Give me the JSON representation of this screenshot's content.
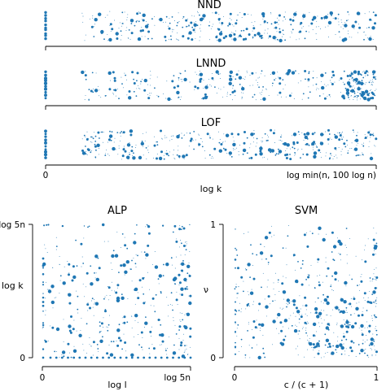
{
  "chart_data": [
    {
      "type": "scatter",
      "title": "NND",
      "xlabel": "",
      "ylabel": "",
      "xticks": [],
      "yticks": [],
      "color": "#1f77b4",
      "x_range": [
        0,
        1
      ],
      "gap_after_zero": [
        0.0,
        0.11
      ],
      "point_count": 380,
      "seed": 11,
      "edge_emphasis": "none"
    },
    {
      "type": "scatter",
      "title": "LNND",
      "xlabel": "",
      "ylabel": "",
      "xticks": [],
      "yticks": [],
      "color": "#1f77b4",
      "x_range": [
        0,
        1
      ],
      "gap_after_zero": [
        0.0,
        0.11
      ],
      "point_count": 420,
      "seed": 23,
      "edge_emphasis": "right"
    },
    {
      "type": "scatter",
      "title": "LOF",
      "xlabel": "log k",
      "ylabel": "",
      "xticks": [
        "0",
        "log min(n, 100 log n)"
      ],
      "yticks": [],
      "color": "#1f77b4",
      "x_range": [
        0,
        1
      ],
      "gap_after_zero": [
        0.0,
        0.11
      ],
      "point_count": 430,
      "seed": 37,
      "edge_emphasis": "none"
    },
    {
      "type": "scatter",
      "title": "ALP",
      "xlabel": "log l",
      "ylabel": "log k",
      "xticks": [
        "0",
        "log 5n"
      ],
      "yticks": [
        "0",
        "log 5n"
      ],
      "color": "#1f77b4",
      "x_range": [
        0,
        1
      ],
      "y_range": [
        0,
        1
      ],
      "point_count": 340,
      "seed": 51,
      "dense_region": "right-edge"
    },
    {
      "type": "scatter",
      "title": "SVM",
      "xlabel": "c / (c + 1)",
      "ylabel": "ν",
      "xticks": [
        "0",
        "1"
      ],
      "yticks": [
        "0",
        "1"
      ],
      "color": "#1f77b4",
      "x_range": [
        0,
        1
      ],
      "y_range": [
        0,
        1
      ],
      "point_count": 360,
      "seed": 73,
      "dense_region": "bottom-right"
    }
  ]
}
